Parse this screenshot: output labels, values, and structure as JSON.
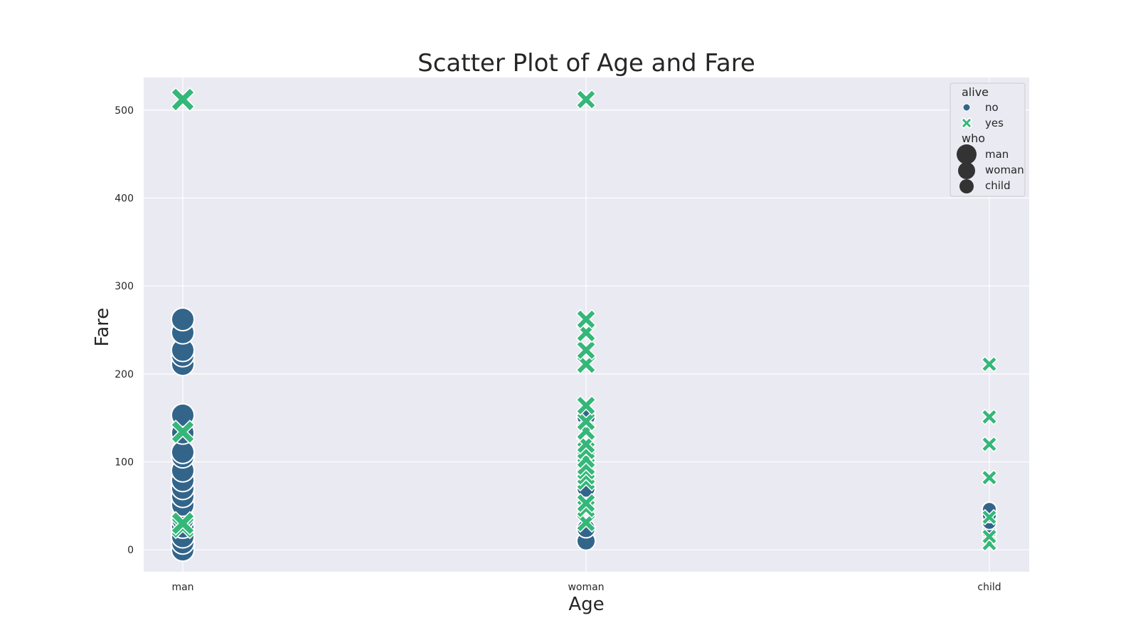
{
  "chart_data": {
    "type": "scatter",
    "title": "Scatter Plot of Age and Fare",
    "xlabel": "Age",
    "ylabel": "Fare",
    "categories": [
      "man",
      "woman",
      "child"
    ],
    "ylim": [
      -25,
      537
    ],
    "yticks": [
      0,
      100,
      200,
      300,
      400,
      500
    ],
    "grid": true,
    "legend_position": "top-right",
    "legend": {
      "hue_title": "alive",
      "hue_entries": [
        {
          "label": "no",
          "color": "#33658a",
          "marker": "circle"
        },
        {
          "label": "yes",
          "color": "#35b779",
          "marker": "x"
        }
      ],
      "size_title": "who",
      "size_entries": [
        {
          "label": "man",
          "size": "large"
        },
        {
          "label": "woman",
          "size": "medium"
        },
        {
          "label": "child",
          "size": "small"
        }
      ]
    },
    "series": [
      {
        "name": "no",
        "color": "#33658a",
        "marker": "circle",
        "points": [
          {
            "x": "man",
            "y": 0
          },
          {
            "x": "man",
            "y": 8
          },
          {
            "x": "man",
            "y": 15
          },
          {
            "x": "man",
            "y": 26
          },
          {
            "x": "man",
            "y": 35
          },
          {
            "x": "man",
            "y": 51
          },
          {
            "x": "man",
            "y": 61
          },
          {
            "x": "man",
            "y": 70
          },
          {
            "x": "man",
            "y": 79
          },
          {
            "x": "man",
            "y": 90
          },
          {
            "x": "man",
            "y": 106
          },
          {
            "x": "man",
            "y": 111
          },
          {
            "x": "man",
            "y": 133
          },
          {
            "x": "man",
            "y": 153
          },
          {
            "x": "man",
            "y": 211
          },
          {
            "x": "man",
            "y": 221
          },
          {
            "x": "man",
            "y": 227
          },
          {
            "x": "man",
            "y": 247
          },
          {
            "x": "man",
            "y": 262
          },
          {
            "x": "woman",
            "y": 10
          },
          {
            "x": "woman",
            "y": 24
          },
          {
            "x": "woman",
            "y": 70
          },
          {
            "x": "woman",
            "y": 151
          },
          {
            "x": "child",
            "y": 20
          },
          {
            "x": "child",
            "y": 31
          },
          {
            "x": "child",
            "y": 39
          },
          {
            "x": "child",
            "y": 46
          }
        ]
      },
      {
        "name": "yes",
        "color": "#35b779",
        "marker": "x",
        "points": [
          {
            "x": "man",
            "y": 26
          },
          {
            "x": "man",
            "y": 30
          },
          {
            "x": "man",
            "y": 134
          },
          {
            "x": "man",
            "y": 512
          },
          {
            "x": "woman",
            "y": 31
          },
          {
            "x": "woman",
            "y": 47
          },
          {
            "x": "woman",
            "y": 53
          },
          {
            "x": "woman",
            "y": 78
          },
          {
            "x": "woman",
            "y": 84
          },
          {
            "x": "woman",
            "y": 90
          },
          {
            "x": "woman",
            "y": 95
          },
          {
            "x": "woman",
            "y": 103
          },
          {
            "x": "woman",
            "y": 113
          },
          {
            "x": "woman",
            "y": 120
          },
          {
            "x": "woman",
            "y": 135
          },
          {
            "x": "woman",
            "y": 146
          },
          {
            "x": "woman",
            "y": 164
          },
          {
            "x": "woman",
            "y": 211
          },
          {
            "x": "woman",
            "y": 227
          },
          {
            "x": "woman",
            "y": 247
          },
          {
            "x": "woman",
            "y": 262
          },
          {
            "x": "woman",
            "y": 512
          },
          {
            "x": "child",
            "y": 7
          },
          {
            "x": "child",
            "y": 15
          },
          {
            "x": "child",
            "y": 37
          },
          {
            "x": "child",
            "y": 82
          },
          {
            "x": "child",
            "y": 120
          },
          {
            "x": "child",
            "y": 151
          },
          {
            "x": "child",
            "y": 211
          }
        ]
      }
    ]
  }
}
